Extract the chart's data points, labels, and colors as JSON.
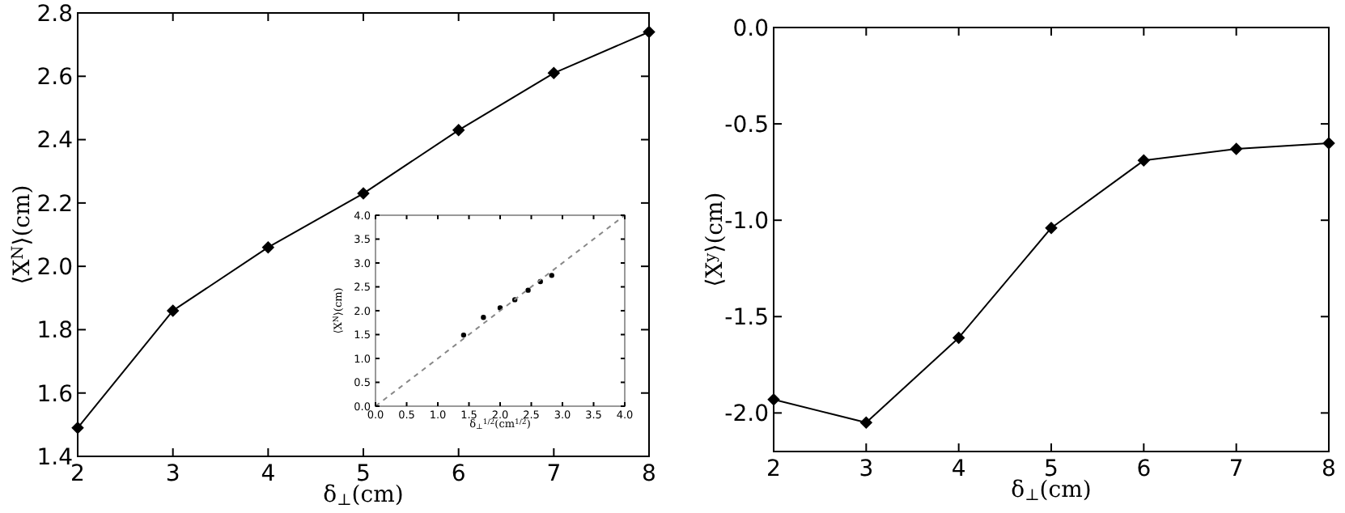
{
  "chart_data": [
    {
      "type": "line",
      "xlabel": "δ$_{⊥}$(cm)",
      "ylabel": "⟨X$^{N}$⟩(cm)",
      "x": [
        2,
        3,
        4,
        5,
        6,
        7,
        8
      ],
      "series": [
        {
          "color": "#000000",
          "values": [
            1.49,
            1.86,
            2.06,
            2.23,
            2.43,
            2.61,
            2.74
          ]
        }
      ],
      "marker": "diamond",
      "xlim": [
        2,
        8
      ],
      "xticks": [
        2,
        3,
        4,
        5,
        6,
        7,
        8
      ],
      "ylim": [
        1.4,
        2.8
      ],
      "yticks": [
        {
          "value": 1.4,
          "label": "1.4"
        },
        {
          "value": 1.6,
          "label": "1.6"
        },
        {
          "value": 1.8,
          "label": "1.8"
        },
        {
          "value": 2.0,
          "label": "2.0"
        },
        {
          "value": 2.2,
          "label": "2.2"
        },
        {
          "value": 2.4,
          "label": "2.4"
        },
        {
          "value": 2.6,
          "label": "2.6"
        },
        {
          "value": 2.8,
          "label": "2.8"
        }
      ]
    },
    {
      "type": "scatter",
      "xlabel": "δ$_{⊥}$$^{1/2}$(cm$^{1/2}$)",
      "ylabel": "⟨X$^{N}$⟩(cm)",
      "series": [
        {
          "color": "#000000",
          "marker": "circle",
          "x": [
            1.414,
            1.732,
            2.0,
            2.236,
            2.449,
            2.646,
            2.828
          ],
          "values": [
            1.49,
            1.86,
            2.06,
            2.23,
            2.43,
            2.61,
            2.74
          ]
        },
        {
          "type": "line",
          "color": "#888888",
          "line_style": "dashed",
          "marker": "none",
          "x": [
            0,
            4
          ],
          "values": [
            0,
            4
          ]
        }
      ],
      "xlim": [
        0,
        4
      ],
      "xticks": [
        {
          "value": 0,
          "label": "0.0"
        },
        {
          "value": 0.5,
          "label": "0.5"
        },
        {
          "value": 1,
          "label": "1.0"
        },
        {
          "value": 1.5,
          "label": "1.5"
        },
        {
          "value": 2,
          "label": "2.0"
        },
        {
          "value": 2.5,
          "label": "2.5"
        },
        {
          "value": 3,
          "label": "3.0"
        },
        {
          "value": 3.5,
          "label": "3.5"
        },
        {
          "value": 4,
          "label": "4.0"
        }
      ],
      "ylim": [
        0,
        4
      ],
      "yticks": [
        {
          "value": 0,
          "label": "0.0"
        },
        {
          "value": 0.5,
          "label": "0.5"
        },
        {
          "value": 1,
          "label": "1.0"
        },
        {
          "value": 1.5,
          "label": "1.5"
        },
        {
          "value": 2,
          "label": "2.0"
        },
        {
          "value": 2.5,
          "label": "2.5"
        },
        {
          "value": 3,
          "label": "3.0"
        },
        {
          "value": 3.5,
          "label": "3.5"
        },
        {
          "value": 4,
          "label": "4.0"
        }
      ]
    },
    {
      "type": "line",
      "xlabel": "δ$_{⊥}$(cm)",
      "ylabel": "⟨X$^{y}$⟩(cm)",
      "x": [
        2,
        3,
        4,
        5,
        6,
        7,
        8
      ],
      "series": [
        {
          "color": "#000000",
          "values": [
            -1.93,
            -2.05,
            -1.61,
            -1.04,
            -0.69,
            -0.63,
            -0.6
          ]
        }
      ],
      "marker": "diamond",
      "xlim": [
        2,
        8
      ],
      "xticks": [
        2,
        3,
        4,
        5,
        6,
        7,
        8
      ],
      "ylim": [
        -2.2,
        0
      ],
      "yticks": [
        {
          "value": -2.0,
          "label": "-2.0"
        },
        {
          "value": -1.5,
          "label": "-1.5"
        },
        {
          "value": -1.0,
          "label": "-1.0"
        },
        {
          "value": -0.5,
          "label": "-0.5"
        },
        {
          "value": 0,
          "label": "0.0"
        }
      ]
    }
  ]
}
